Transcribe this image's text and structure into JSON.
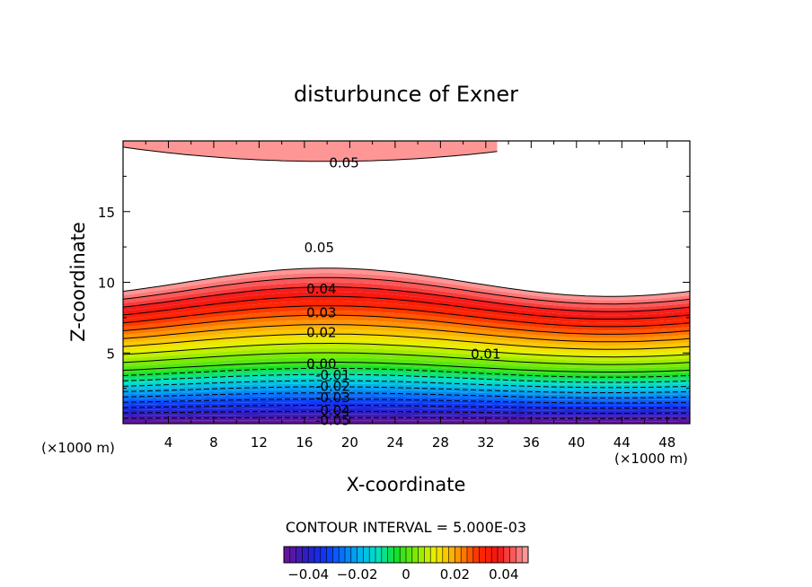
{
  "chart_data": {
    "type": "contour",
    "title": "disturbunce of Exner",
    "xlabel": "X-coordinate",
    "ylabel": "Z-coordinate",
    "x_unit": "(×1000 m)",
    "y_unit": "(×1000 m)",
    "xlim": [
      0,
      50
    ],
    "ylim": [
      0,
      20
    ],
    "xticks": [
      4,
      8,
      12,
      16,
      20,
      24,
      28,
      32,
      36,
      40,
      44,
      48
    ],
    "yticks": [
      5,
      10,
      15
    ],
    "contour_interval_text": "CONTOUR INTERVAL = 5.000E-03",
    "contour_labels": [
      {
        "text": "0.05",
        "x": 19.5,
        "z": 18.5
      },
      {
        "text": "0.05",
        "x": 17.3,
        "z": 12.5
      },
      {
        "text": "0.04",
        "x": 17.5,
        "z": 9.6
      },
      {
        "text": "0.03",
        "x": 17.5,
        "z": 7.9
      },
      {
        "text": "0.02",
        "x": 17.5,
        "z": 6.5
      },
      {
        "text": "0.01",
        "x": 32.0,
        "z": 5.0
      },
      {
        "text": "0.00",
        "x": 17.5,
        "z": 4.3
      },
      {
        "text": "-0.01",
        "x": 18.5,
        "z": 3.5
      },
      {
        "text": "-0.02",
        "x": 18.5,
        "z": 2.7
      },
      {
        "text": "-0.03",
        "x": 18.5,
        "z": 1.9
      },
      {
        "text": "-0.04",
        "x": 18.5,
        "z": 1.0
      },
      {
        "text": "-0.05",
        "x": 18.5,
        "z": 0.3
      }
    ],
    "colorbar": {
      "range": [
        -0.05,
        0.05
      ],
      "ticks": [
        {
          "value": -0.04,
          "label": "−0.04"
        },
        {
          "value": -0.02,
          "label": "−0.02"
        },
        {
          "value": 0,
          "label": "0"
        },
        {
          "value": 0.02,
          "label": "0.02"
        },
        {
          "value": 0.04,
          "label": "0.04"
        }
      ]
    }
  }
}
